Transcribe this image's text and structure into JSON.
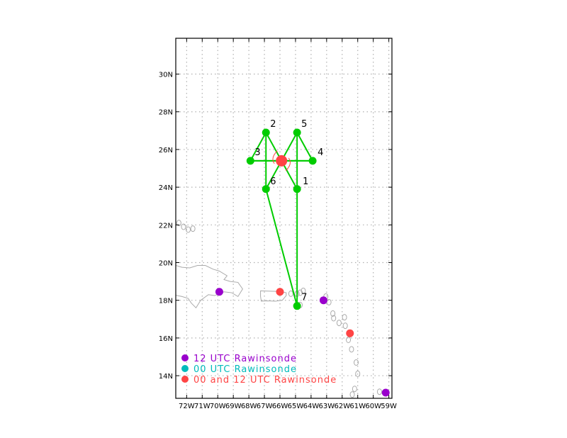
{
  "map": {
    "lon_range": [
      -72.7,
      -58.8
    ],
    "lat_range": [
      12.8,
      31.9
    ],
    "lon_ticks": [
      "72W",
      "71W",
      "70W",
      "69W",
      "68W",
      "67W",
      "66W",
      "65W",
      "64W",
      "63W",
      "62W",
      "61W",
      "60W",
      "59W"
    ],
    "lat_ticks": [
      "14N",
      "16N",
      "18N",
      "20N",
      "22N",
      "24N",
      "26N",
      "28N",
      "30N"
    ],
    "colors": {
      "flight_track": "#00cc00",
      "twelve_utc": "#9900cc",
      "zero_utc": "#00bbbb",
      "both_utc": "#ff4444",
      "coastline": "#aaaaaa",
      "storm_center": "#ff4444"
    },
    "storm_center": {
      "lon": -65.9,
      "lat": 25.4,
      "icon": "tropical-cyclone-icon"
    },
    "flight_points": [
      {
        "label": "1",
        "lon": -64.9,
        "lat": 23.9
      },
      {
        "label": "2",
        "lon": -66.9,
        "lat": 26.9
      },
      {
        "label": "3",
        "lon": -67.9,
        "lat": 25.4
      },
      {
        "label": "4",
        "lon": -63.9,
        "lat": 25.4
      },
      {
        "label": "5",
        "lon": -64.9,
        "lat": 26.9
      },
      {
        "label": "6",
        "lon": -66.9,
        "lat": 23.9
      },
      {
        "label": "7",
        "lon": -64.9,
        "lat": 17.7
      }
    ],
    "rawinsondes": [
      {
        "type": "12",
        "lon": -69.9,
        "lat": 18.45
      },
      {
        "type": "both",
        "lon": -66.0,
        "lat": 18.45
      },
      {
        "type": "12",
        "lon": -63.2,
        "lat": 18.0
      },
      {
        "type": "both",
        "lon": -61.5,
        "lat": 16.25
      },
      {
        "type": "12",
        "lon": -59.2,
        "lat": 13.1
      }
    ]
  },
  "legend": {
    "items": [
      {
        "label": "12 UTC Rawinsonde",
        "color": "#9900cc"
      },
      {
        "label": "00 UTC Rawinsonde",
        "color": "#00bbbb"
      },
      {
        "label": "00 and 12 UTC Rawinsonde",
        "color": "#ff4444"
      }
    ]
  }
}
